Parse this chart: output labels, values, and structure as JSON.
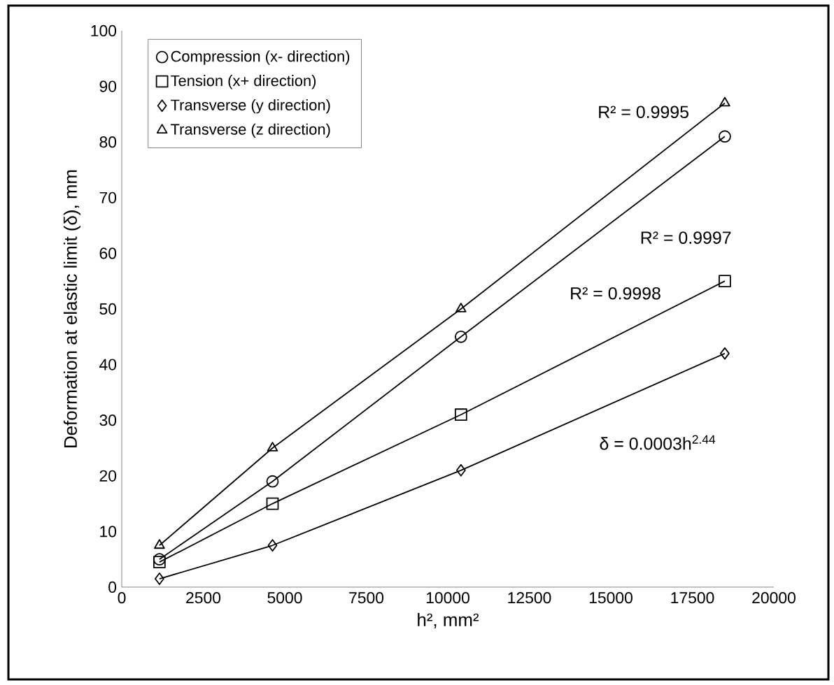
{
  "chart_data": {
    "type": "line",
    "xlabel": "h², mm²",
    "ylabel": "Deformation at elastic limit (δ), mm",
    "x": [
      1156,
      4624,
      10404,
      18496
    ],
    "series": [
      {
        "name": "Compression (x- direction)",
        "color": "#000000",
        "marker": "circle",
        "values": [
          5,
          19,
          45,
          81
        ]
      },
      {
        "name": "Tension (x+ direction)",
        "color": "#000000",
        "marker": "square",
        "values": [
          4.5,
          15,
          31,
          55
        ]
      },
      {
        "name": "Transverse (y direction)",
        "color": "#000000",
        "marker": "diamond",
        "values": [
          1.5,
          7.5,
          21,
          42
        ]
      },
      {
        "name": "Transverse (z direction)",
        "color": "#000000",
        "marker": "triangle",
        "values": [
          7.5,
          25,
          50,
          87
        ]
      }
    ],
    "xlim": [
      0,
      20000
    ],
    "xticks": [
      0,
      2500,
      5000,
      7500,
      10000,
      12500,
      15000,
      17500,
      20000
    ],
    "ylim": [
      0,
      100
    ],
    "yticks": [
      0,
      10,
      20,
      30,
      40,
      50,
      60,
      70,
      80,
      90,
      100
    ],
    "grid": false,
    "legend": "top left",
    "line_style": "solid",
    "annotations": [
      "R² = 0.9995",
      "R² = 0.9997",
      "R² = 0.9998",
      "δ = 0.0003h$^{2.44}$"
    ]
  }
}
